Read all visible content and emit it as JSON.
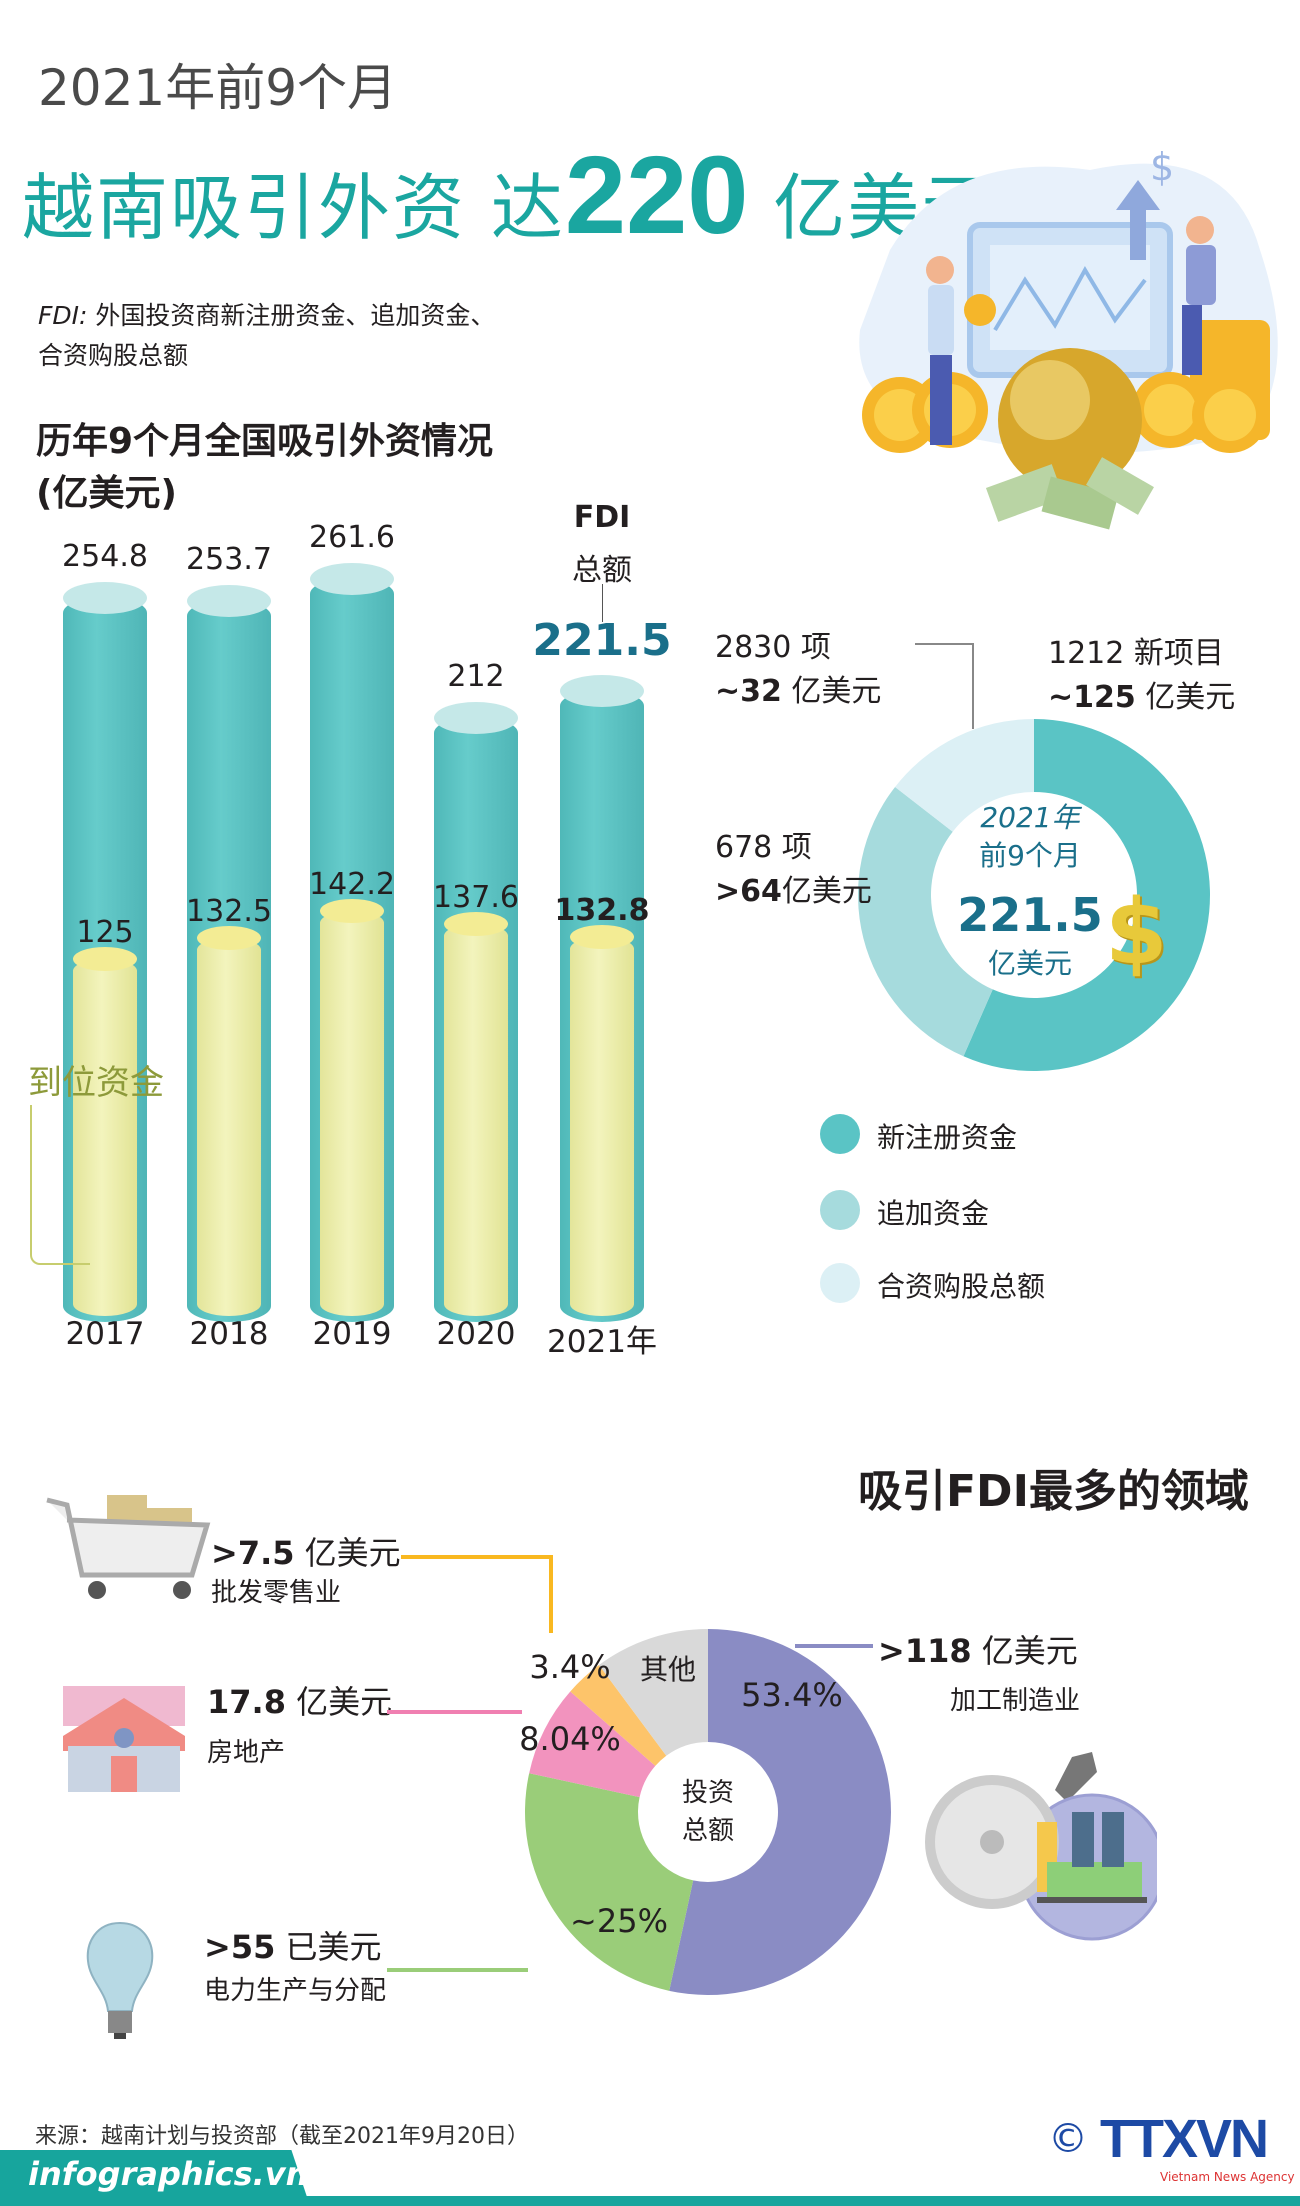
{
  "header": {
    "kicker": "2021年前9个月",
    "headline_pre": "越南吸引外资 达",
    "headline_number": "220",
    "headline_post": " 亿美元",
    "fdi_term": "FDI:",
    "fdi_definition_line1": " 外国投资商新注册资金、追加资金、",
    "fdi_definition_line2": "合资购股总额"
  },
  "bar_section": {
    "title_line1": "历年9个月全国吸引外资情况",
    "title_line2": "(亿美元)",
    "fdi_label": "FDI",
    "fdi_sublabel": "总额",
    "fdi_2021_value": "221.5",
    "disbursed_label": "到位资金"
  },
  "donut1_labels": {
    "jv_count": "2830 项",
    "jv_amount_num": "~32",
    "jv_amount_unit": " 亿美元",
    "new_count": "1212 新项目",
    "new_amount_num": "~125",
    "new_amount_unit": " 亿美元",
    "add_count": "678 项",
    "add_amount_num": ">64",
    "add_amount_unit": "亿美元",
    "center_year": "2021年",
    "center_period": "前9个月",
    "center_total": "221.5",
    "center_unit": "亿美元"
  },
  "legend": [
    {
      "label": "新注册资金",
      "color": "#5ac4c5"
    },
    {
      "label": "追加资金",
      "color": "#a6dbdd"
    },
    {
      "label": "合资购股总额",
      "color": "#dcf0f5"
    }
  ],
  "sectors_section": {
    "title": "吸引FDI最多的领域",
    "center_line1": "投资",
    "center_line2": "总额",
    "retail_value": ">7.5",
    "retail_unit": " 亿美元",
    "retail_name": "批发零售业",
    "realestate_value": "17.8",
    "realestate_unit": " 亿美元",
    "realestate_name": "房地产",
    "power_value": ">55",
    "power_unit": " 已美元",
    "power_name": "电力生产与分配",
    "manuf_value": ">118",
    "manuf_unit": " 亿美元",
    "manuf_name": "加工制造业"
  },
  "footer": {
    "source": "来源：越南计划与投资部（截至2021年9月20日）",
    "site": "infographics.vn",
    "copyright": "©",
    "logo": "TTXVN",
    "logo_sub": "Vietnam News Agency"
  },
  "chart_data": [
    {
      "type": "bar",
      "title": "历年9个月全国吸引外资情况 (亿美元)",
      "categories": [
        "2017",
        "2018",
        "2019",
        "2020",
        "2021年"
      ],
      "series": [
        {
          "name": "FDI 总额",
          "values": [
            254.8,
            253.7,
            261.6,
            212,
            221.5
          ],
          "labels": [
            "254.8",
            "253.7",
            "261.6",
            "212",
            "221.5"
          ],
          "color": "#5bc5c4"
        },
        {
          "name": "到位资金",
          "values": [
            125,
            132.5,
            142.2,
            137.6,
            132.8
          ],
          "labels": [
            "125",
            "132.5",
            "142.2",
            "137.6",
            "132.8"
          ],
          "color": "#eef0a8"
        }
      ],
      "ylim": [
        0,
        280
      ]
    },
    {
      "type": "pie",
      "donut": true,
      "slices": [
        {
          "name": "新注册资金",
          "value": 125,
          "color": "#5ac4c5"
        },
        {
          "name": "追加资金",
          "value": 64,
          "color": "#a6dbdd"
        },
        {
          "name": "合资购股总额",
          "value": 32,
          "color": "#dcf0f5"
        }
      ],
      "total": 221.5
    },
    {
      "type": "pie",
      "donut": true,
      "title": "吸引FDI最多的领域",
      "slices": [
        {
          "name": "加工制造业",
          "value": 53.4,
          "label": "53.4%",
          "color": "#8a8cc4"
        },
        {
          "name": "电力生产与分配",
          "value": 25,
          "label": "~25%",
          "color": "#9acd79"
        },
        {
          "name": "房地产",
          "value": 8.04,
          "label": "8.04%",
          "color": "#f293be"
        },
        {
          "name": "批发零售业",
          "value": 3.4,
          "label": "3.4%",
          "color": "#fdc46a"
        },
        {
          "name": "其他",
          "value": 10.16,
          "label": "其他",
          "color": "#d9d9d9"
        }
      ]
    }
  ]
}
